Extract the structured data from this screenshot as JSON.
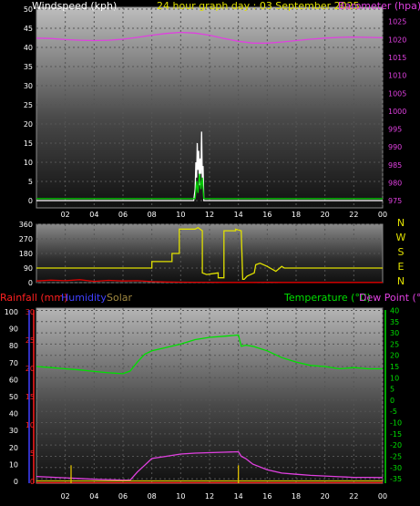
{
  "chart_data": [
    {
      "type": "line",
      "title": "24 hour graph day : 03 September 2025",
      "left_label": "Windspeed (kph)",
      "right_label": "Barometer (hpa)",
      "x_ticks": [
        "02",
        "04",
        "06",
        "08",
        "10",
        "12",
        "14",
        "16",
        "18",
        "20",
        "22",
        "00"
      ],
      "left_ticks": [
        "0",
        "5",
        "10",
        "15",
        "20",
        "25",
        "30",
        "35",
        "40",
        "45",
        "50"
      ],
      "right_ticks": [
        "975",
        "980",
        "985",
        "990",
        "995",
        "1000",
        "1005",
        "1010",
        "1015",
        "1020",
        "1025"
      ],
      "ylim_left": [
        0,
        50
      ],
      "ylim_right": [
        973,
        1029
      ],
      "series": [
        {
          "color": "#e040e0",
          "axis": "right",
          "x": [
            0,
            1,
            2,
            3,
            4,
            5,
            6,
            7,
            8,
            9,
            10,
            11,
            12,
            13,
            14,
            15,
            16,
            17,
            18,
            19,
            20,
            21,
            22,
            23,
            24
          ],
          "values": [
            1020.4,
            1020.3,
            1020.0,
            1019.8,
            1019.7,
            1019.8,
            1020.1,
            1020.6,
            1021.2,
            1021.7,
            1022.0,
            1021.8,
            1021.2,
            1020.3,
            1019.5,
            1019.0,
            1019.0,
            1019.3,
            1019.7,
            1020.1,
            1020.4,
            1020.6,
            1020.7,
            1020.6,
            1020.5
          ]
        },
        {
          "color": "#ffffff",
          "axis": "left",
          "x": [
            0,
            10.9,
            11.0,
            11.05,
            11.1,
            11.15,
            11.2,
            11.25,
            11.3,
            11.35,
            11.4,
            11.45,
            11.5,
            11.55,
            11.6,
            24
          ],
          "values": [
            0,
            0,
            3,
            10,
            6,
            15,
            8,
            13,
            4,
            11,
            7,
            18,
            5,
            9,
            0,
            0
          ]
        },
        {
          "color": "#00d000",
          "axis": "left",
          "x": [
            0,
            11.0,
            11.1,
            11.2,
            11.3,
            11.4,
            11.5,
            11.6,
            24
          ],
          "values": [
            0.5,
            0.5,
            5,
            2,
            7,
            3,
            6,
            0.5,
            0.5
          ]
        }
      ]
    },
    {
      "type": "line",
      "left_ticks": [
        "0",
        "90",
        "180",
        "270",
        "360"
      ],
      "right_labels": [
        "N",
        "W",
        "S",
        "E",
        "N"
      ],
      "ylim": [
        0,
        360
      ],
      "series": [
        {
          "color": "#e0e000",
          "x": [
            0,
            8.0,
            8.0,
            9.4,
            9.4,
            9.9,
            9.9,
            11.0,
            11.2,
            11.5,
            11.5,
            11.8,
            12.6,
            12.6,
            13.0,
            13.0,
            13.8,
            13.8,
            14.2,
            14.3,
            14.4,
            14.6,
            15.1,
            15.2,
            15.5,
            16.0,
            16.6,
            17.0,
            17.2,
            17.2,
            24
          ],
          "values": [
            90,
            90,
            130,
            130,
            180,
            180,
            330,
            330,
            340,
            320,
            60,
            50,
            60,
            30,
            30,
            320,
            320,
            330,
            320,
            20,
            20,
            40,
            60,
            110,
            120,
            100,
            70,
            100,
            90,
            90,
            90
          ]
        },
        {
          "color": "#e00000",
          "x": [
            0,
            1,
            2,
            3,
            4,
            5,
            6,
            7,
            8,
            9,
            10,
            11,
            12,
            13,
            14,
            15,
            16,
            17,
            18,
            19,
            20,
            21,
            22,
            23,
            24
          ],
          "values": [
            10,
            15,
            12,
            18,
            8,
            14,
            10,
            12,
            6,
            4,
            3,
            2,
            2,
            1,
            1,
            1,
            2,
            1,
            1,
            1,
            1,
            1,
            1,
            1,
            1
          ]
        }
      ]
    },
    {
      "type": "line",
      "legend": [
        {
          "label": "Rainfall (mm)",
          "color": "#ff2020"
        },
        {
          "label": "Humidity",
          "color": "#4040ff"
        },
        {
          "label": "Solar",
          "color": "#a08840"
        },
        {
          "label": "Temperature (°C)",
          "color": "#00e000"
        },
        {
          "label": "Dew Point (°C)",
          "color": "#e040e0"
        }
      ],
      "x_ticks": [
        "02",
        "04",
        "06",
        "08",
        "10",
        "12",
        "14",
        "16",
        "18",
        "20",
        "22",
        "00"
      ],
      "humidity_ticks": [
        "0",
        "10",
        "20",
        "30",
        "40",
        "50",
        "60",
        "70",
        "80",
        "90",
        "100"
      ],
      "rain_ticks": [
        "0",
        "5",
        "10",
        "15",
        "20",
        "25",
        "30"
      ],
      "temp_ticks": [
        "-35",
        "-30",
        "-25",
        "-20",
        "-15",
        "-10",
        "-5",
        "0",
        "5",
        "10",
        "15",
        "20",
        "25",
        "30",
        "35",
        "40"
      ],
      "ylim_temp": [
        -37,
        41
      ],
      "series": [
        {
          "name": "Temperature (°C)",
          "color": "#00e000",
          "axis": "temp",
          "x": [
            0,
            1,
            2,
            3,
            4,
            5,
            6,
            6.5,
            7,
            7.5,
            8,
            9,
            10,
            11,
            12,
            13,
            14,
            14.2,
            14.5,
            15,
            16,
            17,
            18,
            19,
            20,
            21,
            22,
            23,
            24
          ],
          "values": [
            15,
            14.5,
            14,
            13.5,
            12.8,
            12.2,
            11.8,
            13,
            17,
            20.5,
            22,
            23.5,
            25,
            27,
            28,
            28.5,
            29,
            24,
            24.5,
            24,
            22,
            19,
            17,
            15.5,
            15,
            14,
            14.5,
            14,
            14
          ]
        },
        {
          "name": "Dew Point (°C)",
          "color": "#e040e0",
          "axis": "temp",
          "x": [
            0,
            1,
            2,
            3,
            4,
            5,
            6,
            6.5,
            7,
            7.5,
            8,
            9,
            10,
            11,
            12,
            13,
            14,
            14.2,
            14.5,
            15,
            16,
            17,
            18,
            19,
            20,
            21,
            22,
            23,
            24
          ],
          "values": [
            -34,
            -34.3,
            -34.6,
            -34.9,
            -35.2,
            -35.4,
            -35.6,
            -35.6,
            -32,
            -29,
            -26,
            -25,
            -24,
            -23.6,
            -23.4,
            -23.2,
            -23,
            -25,
            -26,
            -28.5,
            -31,
            -32.5,
            -33,
            -33.5,
            -33.8,
            -34.1,
            -34.4,
            -34.4,
            -34.5
          ]
        },
        {
          "name": "Solar",
          "color": "#e0c000",
          "axis": "temp",
          "x": [
            0,
            24
          ],
          "values": [
            -36,
            -36
          ]
        },
        {
          "name": "Rainfall (mm)",
          "color": "#ff2020",
          "axis": "temp",
          "x": [
            0,
            24
          ],
          "values": [
            -36.8,
            -36.8
          ]
        }
      ],
      "markers": [
        {
          "color": "#e0c000",
          "x": 2.4
        },
        {
          "color": "#e0c000",
          "x": 14.0
        }
      ]
    }
  ]
}
